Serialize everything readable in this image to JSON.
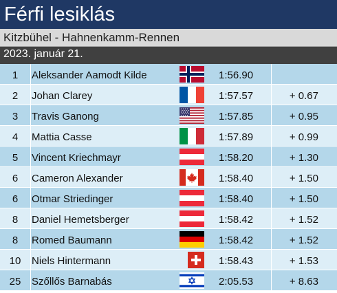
{
  "title": "Férfi lesiklás",
  "subtitle": "Kitzbühel - Hahnenkamm-Rennen",
  "date": "2023. január 21.",
  "rows": [
    {
      "rank": "1",
      "name": "Aleksander Aamodt Kilde",
      "flag": "norway-flag-icon",
      "time": "1:56.90",
      "diff": ""
    },
    {
      "rank": "2",
      "name": "Johan Clarey",
      "flag": "france-flag-icon",
      "time": "1:57.57",
      "diff": "+ 0.67"
    },
    {
      "rank": "3",
      "name": "Travis Ganong",
      "flag": "usa-flag-icon",
      "time": "1:57.85",
      "diff": "+ 0.95"
    },
    {
      "rank": "4",
      "name": "Mattia Casse",
      "flag": "italy-flag-icon",
      "time": "1:57.89",
      "diff": "+ 0.99"
    },
    {
      "rank": "5",
      "name": "Vincent Kriechmayr",
      "flag": "austria-flag-icon",
      "time": "1:58.20",
      "diff": "+ 1.30"
    },
    {
      "rank": "6",
      "name": "Cameron Alexander",
      "flag": "canada-flag-icon",
      "time": "1:58.40",
      "diff": "+ 1.50"
    },
    {
      "rank": "6",
      "name": "Otmar Striedinger",
      "flag": "austria-flag-icon",
      "time": "1:58.40",
      "diff": "+ 1.50"
    },
    {
      "rank": "8",
      "name": "Daniel Hemetsberger",
      "flag": "austria-flag-icon",
      "time": "1:58.42",
      "diff": "+ 1.52"
    },
    {
      "rank": "8",
      "name": "Romed Baumann",
      "flag": "germany-flag-icon",
      "time": "1:58.42",
      "diff": "+ 1.52"
    },
    {
      "rank": "10",
      "name": "Niels Hintermann",
      "flag": "switzerland-flag-icon",
      "time": "1:58.43",
      "diff": "+ 1.53"
    },
    {
      "rank": "25",
      "name": "Szőllős Barnabás",
      "flag": "israel-flag-icon",
      "time": "2:05.53",
      "diff": "+ 8.63"
    }
  ],
  "colors": {
    "title_bg": "#1f3864",
    "subtitle_bg": "#d9d9d9",
    "date_bg": "#404040",
    "row_odd": "#b4d7ea",
    "row_even": "#ddeef7"
  }
}
